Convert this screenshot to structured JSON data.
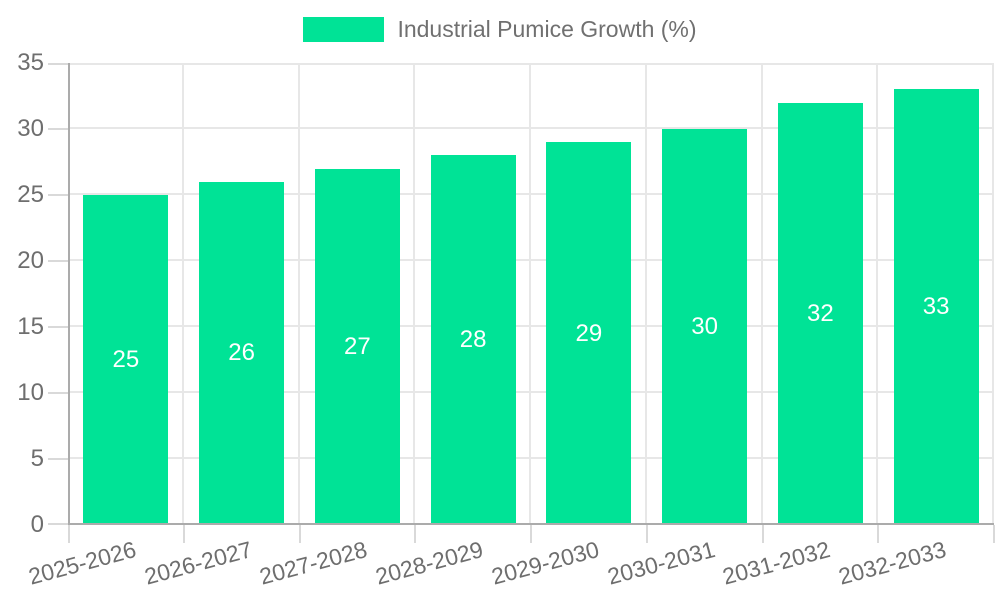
{
  "legend": {
    "label": "Industrial Pumice Growth (%)"
  },
  "colors": {
    "background": "#ffffff",
    "bar": "#00E396",
    "grid": "#e7e7e7",
    "tick": "#d9d9d9",
    "axis_line": "#ababab",
    "axis_text": "#6e6e6e",
    "legend_text": "#707070",
    "data_label": "#ffffff"
  },
  "chart_data": {
    "type": "bar",
    "title": "Industrial Pumice Growth (%)",
    "xlabel": "",
    "ylabel": "",
    "categories": [
      "2025-2026",
      "2026-2027",
      "2027-2028",
      "2028-2029",
      "2029-2030",
      "2030-2031",
      "2031-2032",
      "2032-2033"
    ],
    "values": [
      25,
      26,
      27,
      28,
      29,
      30,
      32,
      33
    ],
    "series": [
      {
        "name": "Industrial Pumice Growth (%)",
        "values": [
          25,
          26,
          27,
          28,
          29,
          30,
          32,
          33
        ]
      }
    ],
    "ylim": [
      0,
      35
    ],
    "yticks": [
      0,
      5,
      10,
      15,
      20,
      25,
      30,
      35
    ],
    "grid": true,
    "legend_position": "top",
    "bar_value_labels": true,
    "x_label_rotation_deg": -15
  }
}
